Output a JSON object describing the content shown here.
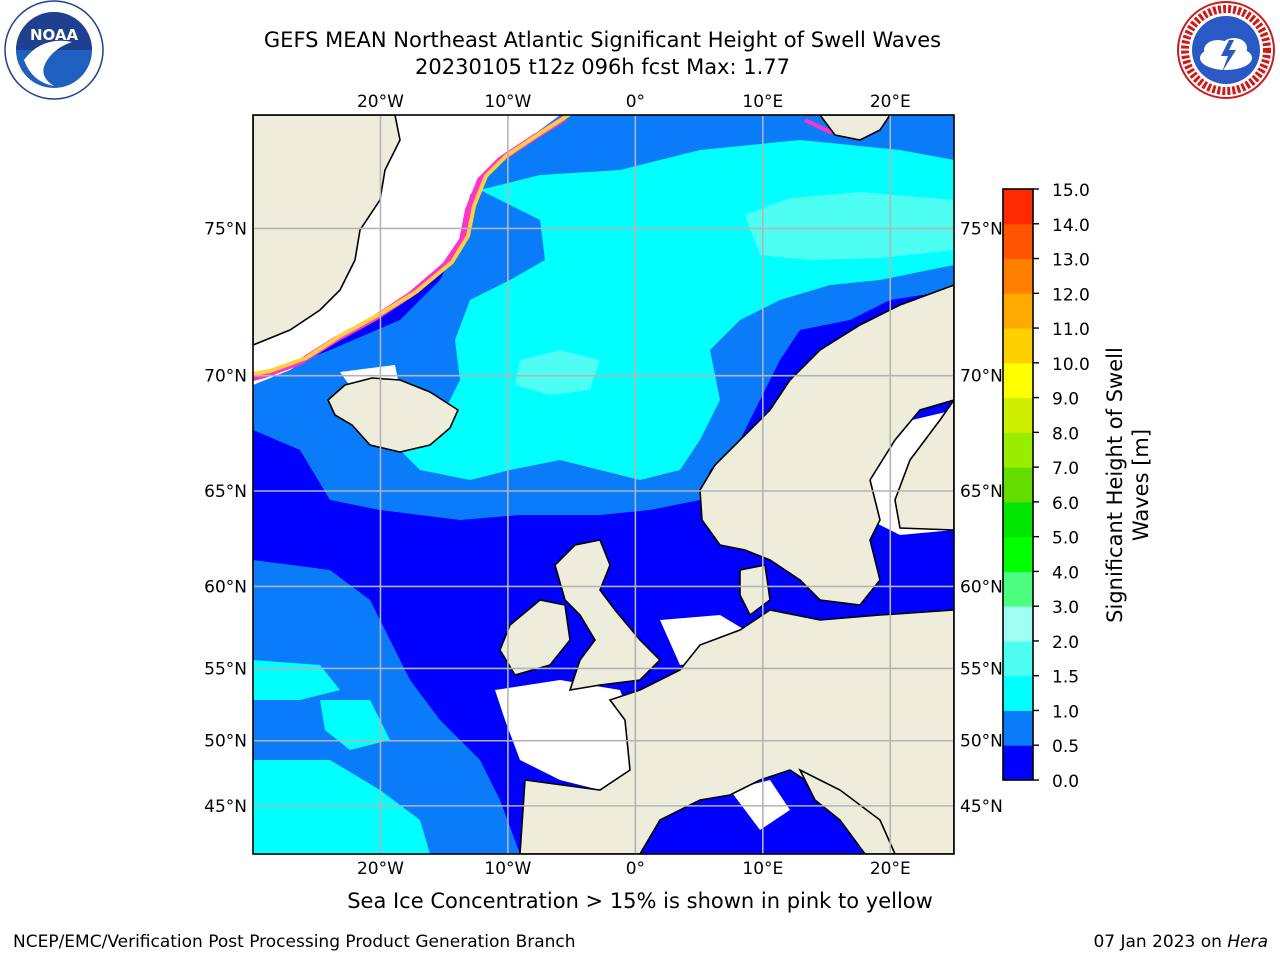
{
  "title": {
    "line1": "GEFS MEAN Northeast Atlantic Significant Height of Swell Waves",
    "line2": "20230105 t12z 096h fcst   Max: 1.77"
  },
  "logos": {
    "left": {
      "name": "noaa-logo",
      "text": "NOAA",
      "ring_text": "NATIONAL OCEANIC AND ATMOSPHERIC ADMINISTRATION · U.S. DEPARTMENT OF COMMERCE"
    },
    "right": {
      "name": "nws-logo",
      "ring_text": "NATIONAL WEATHER SERVICE"
    }
  },
  "map": {
    "lon_range": [
      -30,
      25
    ],
    "lat_range": [
      41,
      78
    ],
    "projection": "mercator",
    "lon_ticks": [
      {
        "value": -20,
        "label": "20°W"
      },
      {
        "value": -10,
        "label": "10°W"
      },
      {
        "value": 0,
        "label": "0°"
      },
      {
        "value": 10,
        "label": "10°E"
      },
      {
        "value": 20,
        "label": "20°E"
      }
    ],
    "lat_ticks": [
      {
        "value": 45,
        "label": "45°N"
      },
      {
        "value": 50,
        "label": "50°N"
      },
      {
        "value": 55,
        "label": "55°N"
      },
      {
        "value": 60,
        "label": "60°N"
      },
      {
        "value": 65,
        "label": "65°N"
      },
      {
        "value": 70,
        "label": "70°N"
      },
      {
        "value": 75,
        "label": "75°N"
      }
    ],
    "grid": true,
    "colors": {
      "land": "#eeeddc",
      "no_data": "#ffffff",
      "grid": "#b4b4b4",
      "ice_pink": "#ff33cc",
      "ice_yellow": "#ffd040"
    }
  },
  "colorbar": {
    "label": "Significant Height of Swell Waves [m]",
    "levels": [
      {
        "value": "0.0",
        "color": "#0000ff"
      },
      {
        "value": "0.5",
        "color": "#0a7cfa"
      },
      {
        "value": "1.0",
        "color": "#00ffff"
      },
      {
        "value": "1.5",
        "color": "#4dfff2"
      },
      {
        "value": "2.0",
        "color": "#a0fff2"
      },
      {
        "value": "3.0",
        "color": "#4dff80"
      },
      {
        "value": "4.0",
        "color": "#00ff00"
      },
      {
        "value": "5.0",
        "color": "#00e600"
      },
      {
        "value": "6.0",
        "color": "#66dd00"
      },
      {
        "value": "7.0",
        "color": "#99ee00"
      },
      {
        "value": "8.0",
        "color": "#ccf000"
      },
      {
        "value": "9.0",
        "color": "#ffff00"
      },
      {
        "value": "10.0",
        "color": "#ffd000"
      },
      {
        "value": "11.0",
        "color": "#ffaa00"
      },
      {
        "value": "12.0",
        "color": "#ff8000"
      },
      {
        "value": "13.0",
        "color": "#ff5500"
      },
      {
        "value": "14.0",
        "color": "#ff2a00"
      },
      {
        "value": "15.0",
        "color": "#ff0000"
      }
    ]
  },
  "note": "Sea Ice Concentration > 15% is shown in pink to yellow",
  "footer": {
    "left": "NCEP/EMC/Verification Post Processing Product Generation Branch",
    "right_prefix": "07 Jan 2023 on ",
    "right_host": "Hera"
  }
}
